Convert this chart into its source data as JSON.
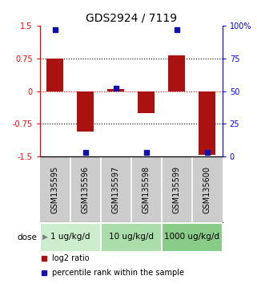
{
  "title": "GDS2924 / 7119",
  "samples": [
    "GSM135595",
    "GSM135596",
    "GSM135597",
    "GSM135598",
    "GSM135599",
    "GSM135600"
  ],
  "log2_ratio": [
    0.75,
    -0.93,
    0.05,
    -0.5,
    0.82,
    -1.45
  ],
  "percentile_rank": [
    97,
    3,
    52,
    3,
    97,
    3
  ],
  "ylim_left": [
    -1.5,
    1.5
  ],
  "ylim_right": [
    0,
    100
  ],
  "yticks_left": [
    -1.5,
    -0.75,
    0,
    0.75,
    1.5
  ],
  "yticks_right": [
    0,
    25,
    50,
    75,
    100
  ],
  "ytick_labels_left": [
    "-1.5",
    "-0.75",
    "0",
    "0.75",
    "1.5"
  ],
  "ytick_labels_right": [
    "0",
    "25",
    "50",
    "75",
    "100%"
  ],
  "hlines_dotted": [
    0.75,
    -0.75
  ],
  "hline_red_dashed": 0,
  "bar_color": "#aa1111",
  "square_color": "#1111aa",
  "dose_groups": [
    {
      "label": "1 ug/kg/d",
      "samples": [
        0,
        1
      ],
      "color": "#cceecc"
    },
    {
      "label": "10 ug/kg/d",
      "samples": [
        2,
        3
      ],
      "color": "#aaddaa"
    },
    {
      "label": "1000 ug/kg/d",
      "samples": [
        4,
        5
      ],
      "color": "#88cc88"
    }
  ],
  "legend_red_label": "log2 ratio",
  "legend_blue_label": "percentile rank within the sample",
  "dose_label": "dose",
  "bar_width": 0.55,
  "background_color": "#ffffff",
  "sample_label_bg": "#cccccc",
  "title_fontsize": 10,
  "label_fontsize": 7,
  "tick_fontsize": 7,
  "dose_fontsize": 7.5
}
